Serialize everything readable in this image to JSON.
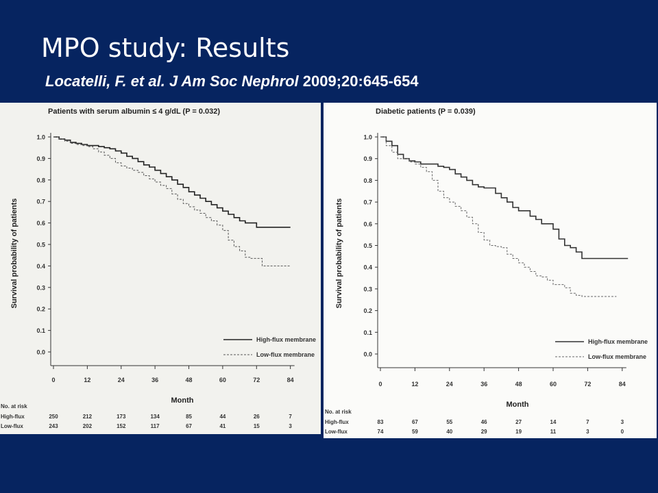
{
  "slide": {
    "title": "MPO study: Results",
    "citation_authors": "Locatelli, F. et al.",
    "citation_journal": "J Am Soc Nephrol",
    "citation_ref": "2009;20:645-654"
  },
  "chart_data": [
    {
      "type": "line",
      "panel_title": "Patients with serum albumin ≤ 4 g/dL (P = 0.032)",
      "ylabel": "Survival probability of patients",
      "xlabel": "Month",
      "xlim": [
        0,
        84
      ],
      "ylim": [
        0,
        1
      ],
      "x_ticks": [
        0,
        12,
        24,
        36,
        48,
        60,
        72,
        84
      ],
      "y_ticks": [
        1.0,
        0.9,
        0.8,
        0.7,
        0.6,
        0.5,
        0.4,
        0.3,
        0.2,
        0.1,
        0.0
      ],
      "legend_position": "bottom-right",
      "series": [
        {
          "name": "High-flux membrane",
          "style": "solid",
          "color": "#222222",
          "points": [
            [
              0,
              1.0
            ],
            [
              2,
              0.99
            ],
            [
              4,
              0.985
            ],
            [
              6,
              0.975
            ],
            [
              8,
              0.97
            ],
            [
              10,
              0.965
            ],
            [
              12,
              0.96
            ],
            [
              14,
              0.96
            ],
            [
              16,
              0.955
            ],
            [
              18,
              0.95
            ],
            [
              20,
              0.945
            ],
            [
              22,
              0.935
            ],
            [
              24,
              0.925
            ],
            [
              26,
              0.91
            ],
            [
              28,
              0.9
            ],
            [
              30,
              0.885
            ],
            [
              32,
              0.87
            ],
            [
              34,
              0.86
            ],
            [
              36,
              0.845
            ],
            [
              38,
              0.83
            ],
            [
              40,
              0.815
            ],
            [
              42,
              0.8
            ],
            [
              44,
              0.78
            ],
            [
              46,
              0.765
            ],
            [
              48,
              0.745
            ],
            [
              50,
              0.73
            ],
            [
              52,
              0.715
            ],
            [
              54,
              0.7
            ],
            [
              56,
              0.685
            ],
            [
              58,
              0.67
            ],
            [
              60,
              0.655
            ],
            [
              62,
              0.64
            ],
            [
              64,
              0.625
            ],
            [
              66,
              0.61
            ],
            [
              68,
              0.6
            ],
            [
              70,
              0.6
            ],
            [
              72,
              0.58
            ],
            [
              74,
              0.58
            ],
            [
              78,
              0.58
            ],
            [
              82,
              0.58
            ],
            [
              84,
              0.58
            ]
          ]
        },
        {
          "name": "Low-flux membrane",
          "style": "dashed",
          "color": "#555555",
          "points": [
            [
              0,
              1.0
            ],
            [
              2,
              0.99
            ],
            [
              4,
              0.98
            ],
            [
              6,
              0.97
            ],
            [
              8,
              0.965
            ],
            [
              10,
              0.96
            ],
            [
              12,
              0.955
            ],
            [
              14,
              0.945
            ],
            [
              16,
              0.93
            ],
            [
              18,
              0.915
            ],
            [
              20,
              0.9
            ],
            [
              22,
              0.88
            ],
            [
              24,
              0.865
            ],
            [
              26,
              0.855
            ],
            [
              28,
              0.845
            ],
            [
              30,
              0.835
            ],
            [
              32,
              0.82
            ],
            [
              34,
              0.805
            ],
            [
              36,
              0.79
            ],
            [
              38,
              0.775
            ],
            [
              40,
              0.76
            ],
            [
              42,
              0.735
            ],
            [
              44,
              0.71
            ],
            [
              46,
              0.69
            ],
            [
              48,
              0.675
            ],
            [
              50,
              0.66
            ],
            [
              52,
              0.645
            ],
            [
              54,
              0.625
            ],
            [
              56,
              0.61
            ],
            [
              58,
              0.59
            ],
            [
              60,
              0.565
            ],
            [
              62,
              0.52
            ],
            [
              64,
              0.49
            ],
            [
              66,
              0.47
            ],
            [
              68,
              0.44
            ],
            [
              70,
              0.435
            ],
            [
              72,
              0.435
            ],
            [
              74,
              0.4
            ],
            [
              78,
              0.4
            ],
            [
              84,
              0.4
            ]
          ]
        }
      ],
      "risk_table": {
        "label": "No. at risk",
        "rows": [
          {
            "name": "High-flux",
            "values": [
              "250",
              "212",
              "173",
              "134",
              "85",
              "44",
              "26",
              "7"
            ]
          },
          {
            "name": "Low-flux",
            "values": [
              "243",
              "202",
              "152",
              "117",
              "67",
              "41",
              "15",
              "3"
            ]
          }
        ]
      }
    },
    {
      "type": "line",
      "panel_title": "Diabetic patients (P = 0.039)",
      "ylabel": "Survival probability of patients",
      "xlabel": "Month",
      "xlim": [
        0,
        84
      ],
      "ylim": [
        0,
        1
      ],
      "x_ticks": [
        0,
        12,
        24,
        36,
        48,
        60,
        72,
        84
      ],
      "y_ticks": [
        1.0,
        0.9,
        0.8,
        0.7,
        0.6,
        0.5,
        0.4,
        0.3,
        0.2,
        0.1,
        0.0
      ],
      "legend_position": "bottom-right",
      "series": [
        {
          "name": "High-flux membrane",
          "style": "solid",
          "color": "#333333",
          "points": [
            [
              0,
              1.0
            ],
            [
              2,
              0.98
            ],
            [
              4,
              0.96
            ],
            [
              6,
              0.92
            ],
            [
              8,
              0.9
            ],
            [
              10,
              0.89
            ],
            [
              12,
              0.885
            ],
            [
              14,
              0.875
            ],
            [
              18,
              0.875
            ],
            [
              20,
              0.865
            ],
            [
              22,
              0.86
            ],
            [
              24,
              0.85
            ],
            [
              26,
              0.83
            ],
            [
              28,
              0.815
            ],
            [
              30,
              0.8
            ],
            [
              32,
              0.78
            ],
            [
              34,
              0.77
            ],
            [
              36,
              0.765
            ],
            [
              38,
              0.765
            ],
            [
              40,
              0.74
            ],
            [
              42,
              0.72
            ],
            [
              44,
              0.7
            ],
            [
              46,
              0.675
            ],
            [
              48,
              0.66
            ],
            [
              50,
              0.66
            ],
            [
              52,
              0.635
            ],
            [
              54,
              0.62
            ],
            [
              56,
              0.6
            ],
            [
              58,
              0.6
            ],
            [
              60,
              0.575
            ],
            [
              62,
              0.53
            ],
            [
              64,
              0.5
            ],
            [
              66,
              0.49
            ],
            [
              68,
              0.47
            ],
            [
              70,
              0.44
            ],
            [
              72,
              0.44
            ],
            [
              78,
              0.44
            ],
            [
              86,
              0.44
            ]
          ]
        },
        {
          "name": "Low-flux membrane",
          "style": "dashed",
          "color": "#666666",
          "points": [
            [
              0,
              1.0
            ],
            [
              2,
              0.96
            ],
            [
              4,
              0.93
            ],
            [
              6,
              0.9
            ],
            [
              8,
              0.9
            ],
            [
              10,
              0.885
            ],
            [
              12,
              0.875
            ],
            [
              14,
              0.86
            ],
            [
              16,
              0.84
            ],
            [
              18,
              0.8
            ],
            [
              20,
              0.75
            ],
            [
              22,
              0.72
            ],
            [
              24,
              0.7
            ],
            [
              26,
              0.68
            ],
            [
              28,
              0.66
            ],
            [
              30,
              0.63
            ],
            [
              32,
              0.6
            ],
            [
              34,
              0.56
            ],
            [
              36,
              0.525
            ],
            [
              38,
              0.5
            ],
            [
              40,
              0.495
            ],
            [
              42,
              0.49
            ],
            [
              44,
              0.46
            ],
            [
              46,
              0.44
            ],
            [
              48,
              0.42
            ],
            [
              50,
              0.4
            ],
            [
              52,
              0.38
            ],
            [
              54,
              0.36
            ],
            [
              56,
              0.355
            ],
            [
              58,
              0.34
            ],
            [
              60,
              0.32
            ],
            [
              62,
              0.32
            ],
            [
              64,
              0.305
            ],
            [
              66,
              0.28
            ],
            [
              68,
              0.27
            ],
            [
              70,
              0.265
            ],
            [
              72,
              0.265
            ],
            [
              76,
              0.265
            ],
            [
              82,
              0.265
            ]
          ]
        }
      ],
      "risk_table": {
        "label": "No. at risk",
        "rows": [
          {
            "name": "High-flux",
            "values": [
              "83",
              "67",
              "55",
              "46",
              "27",
              "14",
              "7",
              "3"
            ]
          },
          {
            "name": "Low-flux",
            "values": [
              "74",
              "59",
              "40",
              "29",
              "19",
              "11",
              "3",
              "0"
            ]
          }
        ]
      }
    }
  ]
}
